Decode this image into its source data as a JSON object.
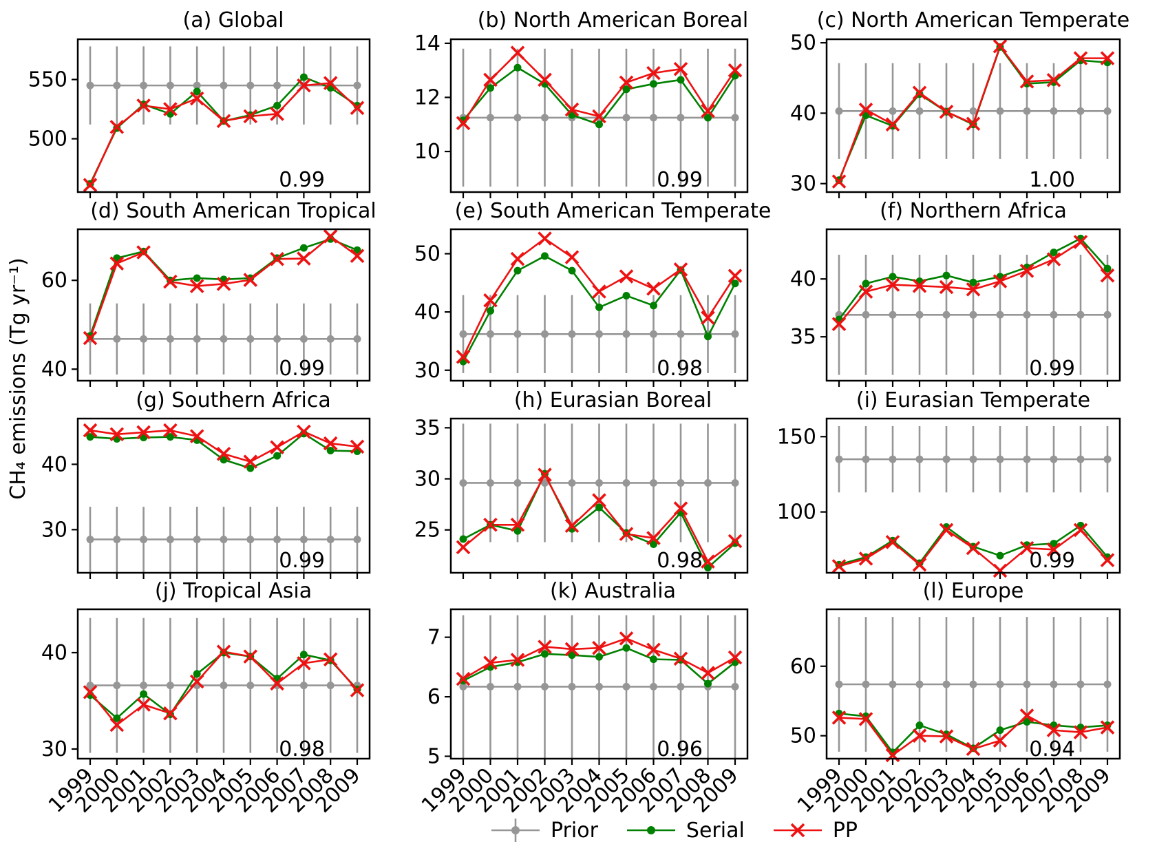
{
  "figure": {
    "ylabel": "CH₄ emissions (Tg yr⁻¹)",
    "years": [
      "1999",
      "2000",
      "2001",
      "2002",
      "2003",
      "2004",
      "2005",
      "2006",
      "2007",
      "2008",
      "2009"
    ],
    "colors": {
      "prior": "#969696",
      "serial": "#008000",
      "pp": "#ee1111",
      "frame": "#000000"
    },
    "legend": {
      "prior": "Prior",
      "serial": "Serial",
      "pp": "PP"
    }
  },
  "chart_data": [
    {
      "type": "line",
      "id": "a",
      "title": "(a) Global",
      "correlation": "0.99",
      "xlabel": "",
      "ylabel": "CH4 emissions (Tg yr-1)",
      "x": [
        1999,
        2000,
        2001,
        2002,
        2003,
        2004,
        2005,
        2006,
        2007,
        2008,
        2009
      ],
      "prior": 545,
      "prior_err": 33,
      "ylim": [
        455,
        584
      ],
      "yticks": [
        500,
        550
      ],
      "series": [
        {
          "name": "Serial",
          "values": [
            462,
            509,
            529,
            521,
            540,
            515,
            520,
            528,
            552,
            543,
            528
          ]
        },
        {
          "name": "PP",
          "values": [
            461,
            510,
            528,
            525,
            534,
            515,
            519,
            521,
            545,
            547,
            526
          ]
        }
      ]
    },
    {
      "type": "line",
      "id": "b",
      "title": "(b) North American Boreal",
      "correlation": "0.99",
      "x": [
        1999,
        2000,
        2001,
        2002,
        2003,
        2004,
        2005,
        2006,
        2007,
        2008,
        2009
      ],
      "prior": 11.25,
      "prior_err": 2.55,
      "ylim": [
        8.5,
        14.15
      ],
      "yticks": [
        10,
        12,
        14
      ],
      "series": [
        {
          "name": "Serial",
          "values": [
            11.15,
            12.35,
            13.1,
            12.5,
            11.35,
            11.0,
            12.3,
            12.5,
            12.65,
            11.25,
            12.8
          ]
        },
        {
          "name": "PP",
          "values": [
            11.05,
            12.65,
            13.65,
            12.65,
            11.55,
            11.3,
            12.55,
            12.9,
            13.05,
            11.5,
            13.0
          ]
        }
      ]
    },
    {
      "type": "line",
      "id": "c",
      "title": "(c) North American Temperate",
      "correlation": "1.00",
      "x": [
        1999,
        2000,
        2001,
        2002,
        2003,
        2004,
        2005,
        2006,
        2007,
        2008,
        2009
      ],
      "prior": 40.3,
      "prior_err": 6.8,
      "ylim": [
        28.8,
        50.5
      ],
      "yticks": [
        30,
        40,
        50
      ],
      "series": [
        {
          "name": "Serial",
          "values": [
            30.5,
            39.7,
            38.2,
            42.7,
            40.2,
            38.4,
            49.4,
            44.2,
            44.4,
            47.5,
            47.2
          ]
        },
        {
          "name": "PP",
          "values": [
            30.3,
            40.5,
            38.4,
            42.9,
            40.2,
            38.5,
            49.5,
            44.5,
            44.7,
            47.8,
            47.8
          ]
        }
      ]
    },
    {
      "type": "line",
      "id": "d",
      "title": "(d) South American Tropical",
      "correlation": "0.99",
      "x": [
        1999,
        2000,
        2001,
        2002,
        2003,
        2004,
        2005,
        2006,
        2007,
        2008,
        2009
      ],
      "prior": 46.8,
      "prior_err": 8,
      "ylim": [
        37.4,
        71.5
      ],
      "yticks": [
        40,
        60
      ],
      "series": [
        {
          "name": "Serial",
          "values": [
            47.5,
            65.0,
            66.5,
            60.0,
            60.5,
            60.2,
            60.5,
            65.0,
            67.3,
            69.3,
            66.8
          ]
        },
        {
          "name": "PP",
          "values": [
            47.0,
            63.8,
            66.3,
            59.7,
            58.7,
            59.2,
            60.1,
            64.8,
            64.9,
            69.9,
            65.5
          ]
        }
      ]
    },
    {
      "type": "line",
      "id": "e",
      "title": "(e) South American Temperate",
      "correlation": "0.98",
      "x": [
        1999,
        2000,
        2001,
        2002,
        2003,
        2004,
        2005,
        2006,
        2007,
        2008,
        2009
      ],
      "prior": 36.2,
      "prior_err": 6.7,
      "ylim": [
        28.2,
        54.2
      ],
      "yticks": [
        30,
        40,
        50
      ],
      "series": [
        {
          "name": "Serial",
          "values": [
            31.5,
            40.2,
            47.1,
            49.6,
            47.1,
            40.8,
            42.8,
            41.1,
            47.2,
            35.8,
            44.9
          ]
        },
        {
          "name": "PP",
          "values": [
            32.3,
            42.0,
            49.1,
            52.6,
            49.4,
            43.5,
            46.1,
            44.0,
            47.3,
            39.0,
            46.2
          ]
        }
      ]
    },
    {
      "type": "line",
      "id": "f",
      "title": "(f) Northern Africa",
      "correlation": "0.99",
      "x": [
        1999,
        2000,
        2001,
        2002,
        2003,
        2004,
        2005,
        2006,
        2007,
        2008,
        2009
      ],
      "prior": 36.9,
      "prior_err": 5.2,
      "ylim": [
        31.2,
        44.3
      ],
      "yticks": [
        35,
        40
      ],
      "series": [
        {
          "name": "Serial",
          "values": [
            36.5,
            39.6,
            40.2,
            39.8,
            40.3,
            39.7,
            40.2,
            41.0,
            42.3,
            43.5,
            40.9
          ]
        },
        {
          "name": "PP",
          "values": [
            36.1,
            38.9,
            39.5,
            39.4,
            39.3,
            39.1,
            39.8,
            40.7,
            41.7,
            43.2,
            40.3
          ]
        }
      ]
    },
    {
      "type": "line",
      "id": "g",
      "title": "(g) Southern Africa",
      "correlation": "0.99",
      "x": [
        1999,
        2000,
        2001,
        2002,
        2003,
        2004,
        2005,
        2006,
        2007,
        2008,
        2009
      ],
      "prior": 28.5,
      "prior_err": 5.0,
      "ylim": [
        23.4,
        47.0
      ],
      "yticks": [
        30,
        40
      ],
      "series": [
        {
          "name": "Serial",
          "values": [
            44.2,
            43.9,
            44.1,
            44.2,
            43.7,
            40.7,
            39.4,
            41.3,
            44.7,
            42.1,
            42.0
          ]
        },
        {
          "name": "PP",
          "values": [
            45.2,
            44.6,
            44.9,
            45.2,
            44.3,
            41.6,
            40.4,
            42.6,
            45.0,
            43.2,
            42.7
          ]
        }
      ]
    },
    {
      "type": "line",
      "id": "h",
      "title": "(h) Eurasian Boreal",
      "correlation": "0.98",
      "x": [
        1999,
        2000,
        2001,
        2002,
        2003,
        2004,
        2005,
        2006,
        2007,
        2008,
        2009
      ],
      "prior": 29.6,
      "prior_err": 5.8,
      "ylim": [
        20.8,
        35.9
      ],
      "yticks": [
        25,
        30,
        35
      ],
      "series": [
        {
          "name": "Serial",
          "values": [
            24.1,
            25.5,
            24.9,
            30.5,
            25.1,
            27.2,
            24.7,
            23.6,
            26.7,
            21.3,
            23.7
          ]
        },
        {
          "name": "PP",
          "values": [
            23.3,
            25.5,
            25.5,
            30.4,
            25.4,
            27.9,
            24.6,
            24.2,
            27.1,
            21.9,
            23.9
          ]
        }
      ]
    },
    {
      "type": "line",
      "id": "i",
      "title": "(i) Eurasian Temperate",
      "correlation": "0.99",
      "x": [
        1999,
        2000,
        2001,
        2002,
        2003,
        2004,
        2005,
        2006,
        2007,
        2008,
        2009
      ],
      "prior": 135,
      "prior_err": 22,
      "ylim": [
        59.6,
        162
      ],
      "yticks": [
        100,
        150
      ],
      "series": [
        {
          "name": "Serial",
          "values": [
            65,
            70,
            81,
            66,
            90,
            77,
            71,
            78,
            79,
            91,
            70
          ]
        },
        {
          "name": "PP",
          "values": [
            64,
            69,
            80,
            65,
            88,
            76,
            61,
            76,
            75,
            88,
            68
          ]
        }
      ]
    },
    {
      "type": "line",
      "id": "j",
      "title": "(j) Tropical Asia",
      "correlation": "0.98",
      "x": [
        1999,
        2000,
        2001,
        2002,
        2003,
        2004,
        2005,
        2006,
        2007,
        2008,
        2009
      ],
      "prior": 36.6,
      "prior_err": 7.0,
      "ylim": [
        29.0,
        44.5
      ],
      "yticks": [
        30,
        40
      ],
      "series": [
        {
          "name": "Serial",
          "values": [
            35.6,
            33.2,
            35.7,
            33.6,
            37.8,
            40.0,
            39.6,
            37.3,
            39.8,
            39.2,
            36.2
          ]
        },
        {
          "name": "PP",
          "values": [
            35.9,
            32.5,
            34.6,
            33.7,
            37.0,
            40.1,
            39.6,
            36.8,
            38.9,
            39.3,
            36.1
          ]
        }
      ]
    },
    {
      "type": "line",
      "id": "k",
      "title": "(k) Australia",
      "correlation": "0.96",
      "x": [
        1999,
        2000,
        2001,
        2002,
        2003,
        2004,
        2005,
        2006,
        2007,
        2008,
        2009
      ],
      "prior": 6.17,
      "prior_err": 1.2,
      "ylim": [
        4.96,
        7.47
      ],
      "yticks": [
        5,
        6,
        7
      ],
      "series": [
        {
          "name": "Serial",
          "values": [
            6.27,
            6.5,
            6.58,
            6.72,
            6.7,
            6.67,
            6.82,
            6.63,
            6.62,
            6.22,
            6.58
          ]
        },
        {
          "name": "PP",
          "values": [
            6.3,
            6.57,
            6.62,
            6.84,
            6.8,
            6.82,
            6.98,
            6.79,
            6.64,
            6.4,
            6.66
          ]
        }
      ]
    },
    {
      "type": "line",
      "id": "l",
      "title": "(l) Europe",
      "correlation": "0.94",
      "x": [
        1999,
        2000,
        2001,
        2002,
        2003,
        2004,
        2005,
        2006,
        2007,
        2008,
        2009
      ],
      "prior": 57.4,
      "prior_err": 9.7,
      "ylim": [
        46.7,
        68.2
      ],
      "yticks": [
        50,
        60
      ],
      "series": [
        {
          "name": "Serial",
          "values": [
            53.2,
            52.8,
            47.6,
            51.5,
            50.2,
            48.2,
            50.8,
            52.0,
            51.5,
            51.2,
            51.5
          ]
        },
        {
          "name": "PP",
          "values": [
            52.6,
            52.4,
            47.2,
            50.0,
            49.9,
            48.1,
            49.3,
            52.9,
            50.8,
            50.5,
            51.2
          ]
        }
      ]
    }
  ]
}
